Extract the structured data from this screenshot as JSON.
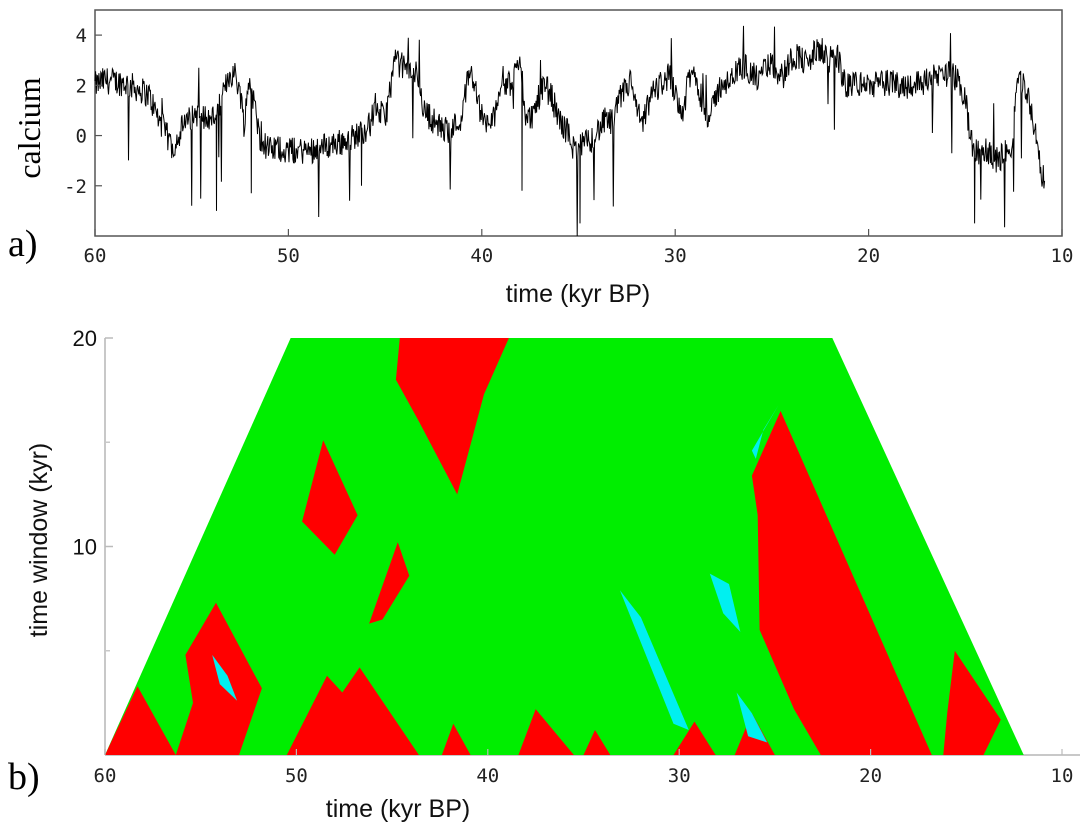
{
  "chart_data": [
    {
      "type": "line",
      "panel_label": "a)",
      "title": "",
      "xlabel": "time (kyr BP)",
      "ylabel": "calcium",
      "xlim": [
        60,
        10
      ],
      "ylim": [
        -4,
        5
      ],
      "x_ticks": [
        "60",
        "50",
        "40",
        "30",
        "20",
        "10"
      ],
      "y_ticks": [
        "4",
        "2",
        "0",
        "-2"
      ],
      "grid": false,
      "color": "#000000",
      "series": [
        {
          "x": [
            60,
            59.5,
            58.5,
            57.6,
            57.2,
            56.8,
            56.4,
            56.0,
            55.5,
            54.8,
            54.0,
            53.5,
            53.1,
            52.8,
            52.5,
            52.3,
            52.0,
            51.5,
            51.0,
            50.5,
            50.0,
            49.0,
            48.0,
            47.0,
            46.3,
            45.8,
            45.5,
            45.0,
            44.5,
            44.2,
            43.7,
            43.3,
            43.0,
            42.5,
            42.0,
            41.5,
            41.0,
            40.7,
            40.4,
            40.1,
            39.8,
            39.4,
            39.0,
            38.6,
            38.2,
            38.0,
            37.7,
            37.4,
            37.1,
            36.8,
            36.4,
            36.0,
            35.6,
            35.2,
            34.8,
            34.4,
            34.0,
            33.6,
            33.2,
            32.9,
            32.6,
            32.3,
            32.0,
            31.7,
            31.4,
            31.1,
            30.7,
            30.3,
            29.9,
            29.6,
            29.3,
            29.0,
            28.6,
            28.2,
            27.9,
            27.5,
            27.2,
            26.8,
            26.4,
            26.0,
            25.6,
            25.2,
            24.8,
            24.4,
            24.0,
            23.6,
            23.2,
            22.8,
            22.4,
            22.0,
            21.6,
            21.2,
            20.8,
            20.0,
            19.0,
            18.0,
            17.0,
            16.0,
            15.5,
            15.0,
            14.7,
            14.5,
            14.2,
            13.8,
            13.4,
            13.0,
            12.6,
            12.3,
            12.0,
            11.7,
            11.4,
            11.1,
            10.9
          ],
          "y": [
            2.0,
            2.2,
            2.1,
            1.8,
            1.6,
            0.8,
            0.2,
            -0.5,
            0.3,
            0.9,
            0.6,
            1.2,
            2.4,
            2.5,
            1.8,
            0.5,
            2.3,
            0.0,
            -0.6,
            -0.5,
            -0.6,
            -0.6,
            -0.4,
            -0.2,
            0.1,
            0.4,
            1.2,
            0.6,
            3.0,
            2.8,
            2.6,
            2.4,
            1.0,
            0.6,
            0.2,
            0.3,
            0.8,
            2.5,
            2.3,
            1.0,
            0.4,
            0.6,
            2.3,
            2.0,
            2.6,
            2.9,
            0.6,
            0.8,
            1.4,
            2.0,
            1.6,
            0.6,
            0.2,
            -0.6,
            -0.4,
            -0.2,
            0.2,
            0.6,
            0.5,
            1.4,
            1.8,
            2.2,
            1.0,
            0.4,
            1.2,
            1.8,
            2.1,
            2.4,
            1.6,
            0.8,
            2.3,
            2.5,
            1.4,
            0.6,
            1.6,
            2.2,
            2.0,
            2.6,
            2.8,
            2.4,
            2.2,
            2.9,
            2.6,
            2.4,
            3.1,
            3.2,
            2.8,
            3.3,
            3.4,
            3.0,
            3.2,
            1.9,
            2.1,
            2.0,
            2.1,
            2.0,
            2.2,
            2.5,
            2.3,
            1.5,
            -0.3,
            -0.6,
            -0.8,
            -0.6,
            -1.0,
            -0.8,
            -0.4,
            2.4,
            2.0,
            1.5,
            0.2,
            -1.5,
            -1.8
          ]
        }
      ]
    },
    {
      "type": "heatmap",
      "panel_label": "b)",
      "title": "",
      "xlabel": "time (kyr BP)",
      "ylabel": "time window (kyr)",
      "xlim": [
        60,
        10
      ],
      "ylim": [
        0,
        20
      ],
      "x_ticks": [
        "60",
        "50",
        "40",
        "30",
        "20",
        "10"
      ],
      "y_ticks": [
        "20",
        "10"
      ],
      "grid": false,
      "colors": {
        "background": "#00ee00",
        "red": "#ff0000",
        "cyan": "#00f0f0",
        "magenta": "#ff00ff"
      },
      "support": {
        "comment_free": true,
        "apex_left_x": 50.3,
        "apex_right_x": 22.0,
        "base_left_x": 60,
        "base_right_x": 12.0
      },
      "regions": [
        {
          "color": "red",
          "points": [
            [
              60,
              0
            ],
            [
              58.3,
              3.3
            ],
            [
              56.3,
              0
            ]
          ]
        },
        {
          "color": "red",
          "points": [
            [
              55.8,
              4.8
            ],
            [
              54.2,
              7.3
            ],
            [
              51.8,
              3.2
            ],
            [
              53.0,
              0
            ],
            [
              56.3,
              0
            ],
            [
              55.4,
              2.5
            ]
          ]
        },
        {
          "color": "red",
          "points": [
            [
              50.5,
              0
            ],
            [
              48.4,
              3.8
            ],
            [
              47.6,
              3.0
            ],
            [
              46.7,
              4.2
            ],
            [
              43.6,
              0
            ]
          ]
        },
        {
          "color": "red",
          "points": [
            [
              49.7,
              11.2
            ],
            [
              48.6,
              15.1
            ],
            [
              46.8,
              11.5
            ],
            [
              48.0,
              9.6
            ]
          ]
        },
        {
          "color": "red",
          "points": [
            [
              46.2,
              6.3
            ],
            [
              44.7,
              10.2
            ],
            [
              44.1,
              8.6
            ],
            [
              45.5,
              6.5
            ]
          ]
        },
        {
          "color": "red",
          "points": [
            [
              44.6,
              20
            ],
            [
              41.3,
              20
            ],
            [
              38.9,
              20
            ],
            [
              40.2,
              17.3
            ],
            [
              41.6,
              12.5
            ],
            [
              43.6,
              16.0
            ],
            [
              44.8,
              18.0
            ]
          ]
        },
        {
          "color": "red",
          "points": [
            [
              42.4,
              0
            ],
            [
              41.8,
              1.5
            ],
            [
              40.9,
              0
            ]
          ]
        },
        {
          "color": "red",
          "points": [
            [
              38.4,
              0
            ],
            [
              37.5,
              2.2
            ],
            [
              35.5,
              0
            ]
          ]
        },
        {
          "color": "red",
          "points": [
            [
              35.0,
              0
            ],
            [
              34.4,
              1.2
            ],
            [
              33.6,
              0
            ]
          ]
        },
        {
          "color": "red",
          "points": [
            [
              30.3,
              0
            ],
            [
              29.2,
              1.6
            ],
            [
              28.1,
              0
            ]
          ]
        },
        {
          "color": "red",
          "points": [
            [
              27.1,
              0
            ],
            [
              26.2,
              2.0
            ],
            [
              25.0,
              0
            ]
          ]
        },
        {
          "color": "red",
          "points": [
            [
              24.7,
              16.5
            ],
            [
              16.8,
              0
            ],
            [
              20.0,
              0
            ],
            [
              22.6,
              0
            ],
            [
              24.0,
              2.2
            ],
            [
              25.8,
              6.0
            ],
            [
              25.9,
              11.5
            ],
            [
              26.2,
              13.4
            ]
          ]
        },
        {
          "color": "red",
          "points": [
            [
              15.6,
              5.0
            ],
            [
              13.2,
              1.7
            ],
            [
              14.1,
              0
            ],
            [
              16.2,
              0
            ],
            [
              16.0,
              2.0
            ]
          ]
        },
        {
          "color": "cyan",
          "points": [
            [
              26.2,
              14.6
            ],
            [
              24.8,
              16.8
            ],
            [
              25.6,
              15.6
            ],
            [
              26.0,
              14.2
            ]
          ]
        },
        {
          "color": "cyan",
          "points": [
            [
              33.1,
              7.9
            ],
            [
              32.0,
              6.6
            ],
            [
              29.5,
              1.2
            ],
            [
              30.3,
              1.5
            ]
          ]
        },
        {
          "color": "cyan",
          "points": [
            [
              28.4,
              8.7
            ],
            [
              27.4,
              8.2
            ],
            [
              26.8,
              5.9
            ],
            [
              27.7,
              6.8
            ]
          ]
        },
        {
          "color": "cyan",
          "points": [
            [
              54.4,
              4.8
            ],
            [
              53.6,
              3.8
            ],
            [
              53.1,
              2.6
            ],
            [
              54.0,
              3.4
            ]
          ]
        },
        {
          "color": "cyan",
          "points": [
            [
              27.0,
              3.0
            ],
            [
              26.2,
              2.0
            ],
            [
              25.4,
              0.6
            ],
            [
              26.4,
              0.9
            ]
          ]
        }
      ]
    }
  ]
}
